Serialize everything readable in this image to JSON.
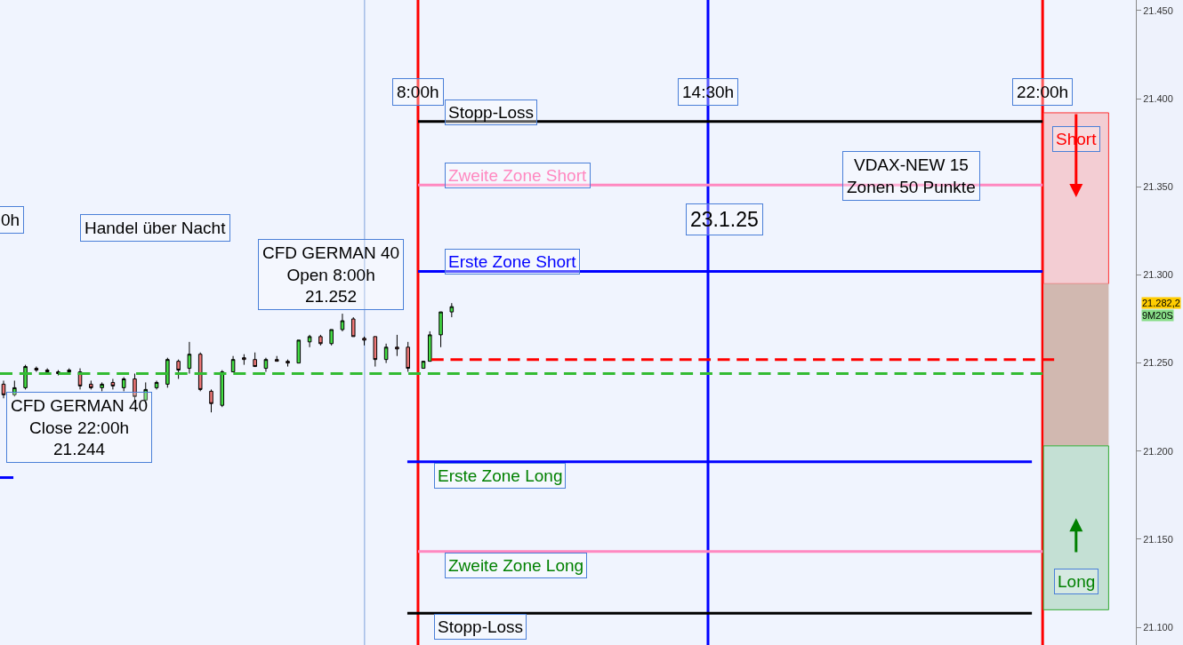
{
  "chart_data": {
    "type": "candlestick",
    "x": [
      -1.29,
      -1.045,
      -0.8,
      -0.555,
      -0.31,
      -0.065,
      0.18,
      0.425,
      0.67,
      0.915,
      1.16,
      1.405,
      1.65,
      1.895,
      2.14,
      2.385,
      2.63,
      2.875,
      3.12,
      3.365,
      3.61,
      3.855,
      4.1,
      4.345,
      4.59,
      4.835,
      5.08,
      5.325,
      5.57,
      5.815,
      6.06,
      6.305,
      6.55,
      6.795,
      7.04,
      7.285,
      7.53,
      7.775,
      8.12,
      8.265,
      8.51,
      8.755
    ],
    "ohlc": [
      [
        21238,
        21240,
        21230,
        21232
      ],
      [
        21232,
        21240,
        21231,
        21236
      ],
      [
        21236,
        21249,
        21235,
        21248
      ],
      [
        21247,
        21248,
        21245,
        21246
      ],
      [
        21246,
        21247,
        21244,
        21245
      ],
      [
        21245,
        21246,
        21243,
        21244
      ],
      [
        21245,
        21247,
        21244,
        21246
      ],
      [
        21245,
        21247,
        21235,
        21237
      ],
      [
        21238,
        21240,
        21235,
        21236
      ],
      [
        21236,
        21239,
        21234,
        21238
      ],
      [
        21239,
        21241,
        21235,
        21237
      ],
      [
        21236,
        21242,
        21234,
        21241
      ],
      [
        21241,
        21244,
        21228,
        21231
      ],
      [
        21229,
        21239,
        21227,
        21235
      ],
      [
        21236,
        21240,
        21235,
        21239
      ],
      [
        21238,
        21253,
        21236,
        21252
      ],
      [
        21251,
        21252,
        21241,
        21246
      ],
      [
        21247,
        21262,
        21244,
        21255
      ],
      [
        21255,
        21256,
        21234,
        21235
      ],
      [
        21234,
        21235,
        21222,
        21227
      ],
      [
        21226,
        21246,
        21225,
        21245
      ],
      [
        21245,
        21254,
        21245,
        21252
      ],
      [
        21253,
        21255,
        21249,
        21252
      ],
      [
        21252,
        21256,
        21248,
        21248
      ],
      [
        21247,
        21253,
        21245,
        21252
      ],
      [
        21252,
        21254,
        21251,
        21251
      ],
      [
        21251,
        21252,
        21248,
        21250
      ],
      [
        21250,
        21263,
        21250,
        21263
      ],
      [
        21262,
        21266,
        21259,
        21265
      ],
      [
        21265,
        21266,
        21260,
        21261
      ],
      [
        21261,
        21269,
        21260,
        21269
      ],
      [
        21269,
        21278,
        21268,
        21274
      ],
      [
        21275,
        21276,
        21265,
        21265
      ],
      [
        21264,
        21265,
        21260,
        21263
      ],
      [
        21265,
        21265,
        21248,
        21252
      ],
      [
        21252,
        21261,
        21250,
        21259
      ],
      [
        21259,
        21266,
        21254,
        21258
      ],
      [
        21259,
        21262,
        21245,
        21247
      ],
      [
        21247,
        21251,
        21247,
        21251
      ],
      [
        21251,
        21268,
        21251,
        21266
      ],
      [
        21266,
        21279,
        21259,
        21279
      ],
      [
        21279,
        21284,
        21276,
        21282
      ]
    ],
    "series": [
      {
        "type": "line",
        "name": "Stopp-Loss",
        "color": "#000000",
        "x": [
          8,
          22
        ],
        "values": [
          21387,
          21387
        ]
      },
      {
        "type": "line",
        "name": "Zweite Zone Short",
        "color": "#ff88c0",
        "x": [
          8,
          22
        ],
        "values": [
          21351,
          21351
        ]
      },
      {
        "type": "line",
        "name": "Erste Zone Short",
        "color": "#0000ff",
        "x": [
          8,
          22
        ],
        "values": [
          21302,
          21302
        ]
      },
      {
        "type": "line",
        "color": "#ff0000",
        "line_style": "dashed",
        "x": [
          8.3,
          22.26
        ],
        "values": [
          21252,
          21252
        ]
      },
      {
        "type": "line",
        "color": "#33bb33",
        "line_style": "dashed",
        "x": [
          -1.37,
          22
        ],
        "values": [
          21244,
          21244
        ]
      },
      {
        "type": "line",
        "name": "Erste Zone Long",
        "color": "#0000ff",
        "x": [
          7.76,
          21.76
        ],
        "values": [
          21194,
          21194
        ]
      },
      {
        "type": "line",
        "name": "Zweite Zone Long",
        "color": "#ff88c0",
        "x": [
          8,
          22
        ],
        "values": [
          21143,
          21143
        ]
      },
      {
        "type": "line",
        "name": "Stopp-Loss",
        "color": "#000000",
        "x": [
          7.76,
          21.76
        ],
        "values": [
          21108,
          21108
        ]
      },
      {
        "type": "line",
        "color": "#0000ff",
        "x": [
          -1.37,
          -1.07
        ],
        "values": [
          21185,
          21185
        ]
      }
    ],
    "xlim": [
      -1.37,
      24.09
    ],
    "ylim": [
      21090,
      21456
    ],
    "yticks": [
      {
        "value": 21100,
        "label": "21.100"
      },
      {
        "value": 21150,
        "label": "21.150"
      },
      {
        "value": 21200,
        "label": "21.200"
      },
      {
        "value": 21250,
        "label": "21.250"
      },
      {
        "value": 21300,
        "label": "21.300"
      },
      {
        "value": 21350,
        "label": "21.350"
      },
      {
        "value": 21400,
        "label": "21.400"
      },
      {
        "value": 21450,
        "label": "21.450"
      }
    ],
    "tick_labels": "y",
    "grid": false,
    "legend": false,
    "ref_lines": [
      {
        "axis": "x",
        "value": 8,
        "label": "8:00h",
        "color": "#ff0000"
      },
      {
        "axis": "x",
        "value": 14.5,
        "label": "14:30h",
        "color": "#0000ff"
      },
      {
        "axis": "x",
        "value": 22,
        "label": "22:00h",
        "color": "#ff0000"
      },
      {
        "axis": "x",
        "value": 6.8,
        "color": "#a8c0e8"
      }
    ],
    "bands": [
      {
        "axis": "y",
        "from": 21295,
        "to": 21392,
        "label": "Short",
        "color": "#f3cdd3"
      },
      {
        "axis": "y",
        "from": 21203,
        "to": 21295,
        "color": "#d1b8b0"
      },
      {
        "axis": "y",
        "from": 21110,
        "to": 21203,
        "label": "Long",
        "color": "#c4e0d4"
      }
    ],
    "annotations": [
      "0h",
      "Handel über Nacht",
      "CFD GERMAN 40\nOpen 8:00h\n21.252",
      "CFD GERMAN 40\nClose 22:00h\n21.244",
      "VDAX-NEW 15\nZonen 50 Punkte",
      "23.1.25",
      "21.282,2",
      "9M20S"
    ]
  }
}
